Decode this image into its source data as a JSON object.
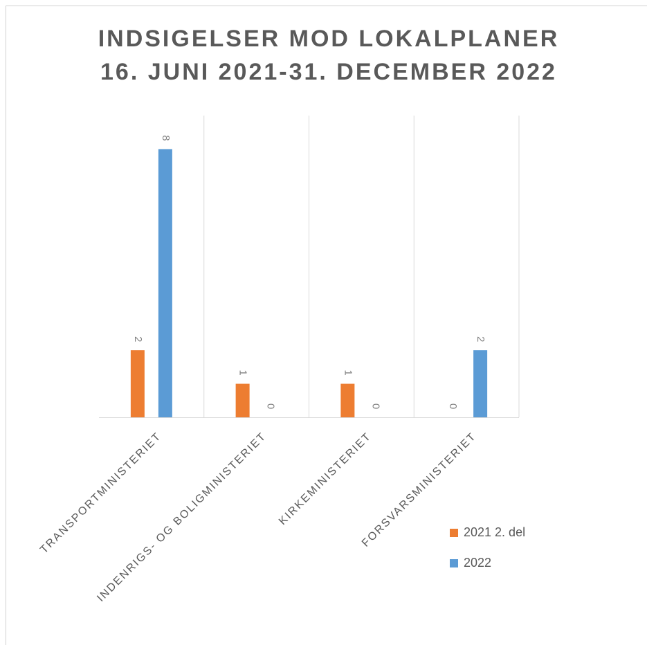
{
  "chart_data": {
    "type": "bar",
    "title": [
      "INDSIGELSER MOD LOKALPLANER",
      "16. JUNI 2021-31. DECEMBER 2022"
    ],
    "categories": [
      "TRANSPORTMINISTERIET",
      "INDENRIGS- OG BOLIGMINISTERIET",
      "KIRKEMINISTERIET",
      "FORSVARSMINISTERIET"
    ],
    "series": [
      {
        "name": "2021 2. del",
        "color": "#ed7d31",
        "values": [
          2,
          1,
          1,
          0
        ]
      },
      {
        "name": "2022",
        "color": "#5b9bd5",
        "values": [
          8,
          0,
          0,
          2
        ]
      }
    ],
    "ylim": [
      0,
      9
    ],
    "legend": "right"
  }
}
